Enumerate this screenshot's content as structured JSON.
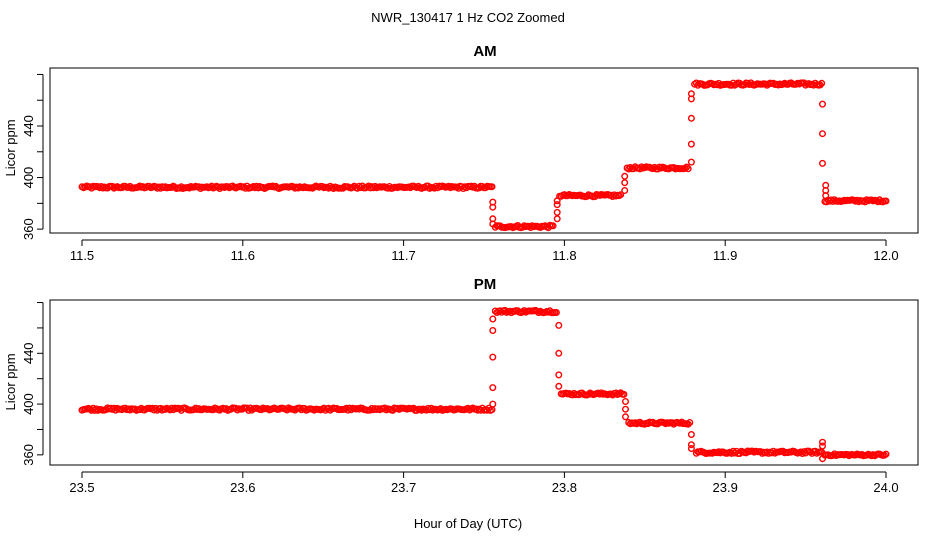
{
  "figure": {
    "title": "NWR_130417  1 Hz CO2 Zoomed",
    "xlabel": "Hour of Day (UTC)"
  },
  "colors": {
    "points": "#ff0000"
  },
  "chart_data": [
    {
      "type": "scatter",
      "title": "AM",
      "ylabel": "Licor ppm",
      "xlim": [
        11.5,
        12.0
      ],
      "ylim": [
        357,
        485
      ],
      "xticks": [
        "11.5",
        "11.6",
        "11.7",
        "11.8",
        "11.9",
        "12.0"
      ],
      "yticks": [
        "360",
        "400",
        "440"
      ],
      "grid": false,
      "marker": "open-circle",
      "series": [
        {
          "values": [
            {
              "x": [
                11.5,
                11.755
              ],
              "y": 392.5,
              "noise": 1.0
            },
            {
              "x": [
                11.757,
                11.793
              ],
              "y": 362,
              "noise": 1.0
            },
            {
              "x": [
                11.797,
                11.835
              ],
              "y": 386,
              "noise": 0.9
            },
            {
              "x": [
                11.839,
                11.877
              ],
              "y": 407.5,
              "noise": 0.9
            },
            {
              "x": [
                11.881,
                11.96
              ],
              "y": 472.5,
              "noise": 1.0
            },
            {
              "x": [
                11.962,
                12.0
              ],
              "y": 382,
              "noise": 0.9
            }
          ],
          "transitions": [
            {
              "x": 11.7555,
              "y": [
                381,
                377,
                368,
                364
              ]
            },
            {
              "x": 11.7955,
              "y": [
                368,
                373,
                379,
                382
              ]
            },
            {
              "x": 11.8375,
              "y": [
                390,
                396,
                401
              ]
            },
            {
              "x": 11.879,
              "y": [
                412,
                426,
                446,
                461,
                465
              ]
            },
            {
              "x": 11.9605,
              "y": [
                457,
                434,
                411
              ]
            },
            {
              "x": 11.9625,
              "y": [
                394,
                390,
                386
              ]
            }
          ]
        }
      ]
    },
    {
      "type": "scatter",
      "title": "PM",
      "ylabel": "Licor ppm",
      "xlim": [
        23.5,
        24.0
      ],
      "ylim": [
        352,
        482
      ],
      "xticks": [
        "23.5",
        "23.6",
        "23.7",
        "23.8",
        "23.9",
        "24.0"
      ],
      "yticks": [
        "360",
        "400",
        "440"
      ],
      "grid": false,
      "marker": "open-circle",
      "series": [
        {
          "values": [
            {
              "x": [
                23.5,
                23.755
              ],
              "y": 396,
              "noise": 1.0
            },
            {
              "x": [
                23.757,
                23.795
              ],
              "y": 473,
              "noise": 1.0
            },
            {
              "x": [
                23.798,
                23.837
              ],
              "y": 408,
              "noise": 0.9
            },
            {
              "x": [
                23.84,
                23.878
              ],
              "y": 385,
              "noise": 0.9
            },
            {
              "x": [
                23.882,
                23.96
              ],
              "y": 362,
              "noise": 1.0
            },
            {
              "x": [
                23.962,
                24.0
              ],
              "y": 360,
              "noise": 0.8
            }
          ],
          "transitions": [
            {
              "x": 23.7555,
              "y": [
                400,
                413,
                437,
                458,
                467
              ]
            },
            {
              "x": 23.7965,
              "y": [
                462,
                440,
                423,
                414
              ]
            },
            {
              "x": 23.838,
              "y": [
                402,
                396,
                390
              ]
            },
            {
              "x": 23.879,
              "y": [
                376,
                368,
                365
              ]
            },
            {
              "x": 23.9605,
              "y": [
                370,
                367,
                357
              ]
            }
          ]
        }
      ]
    }
  ]
}
